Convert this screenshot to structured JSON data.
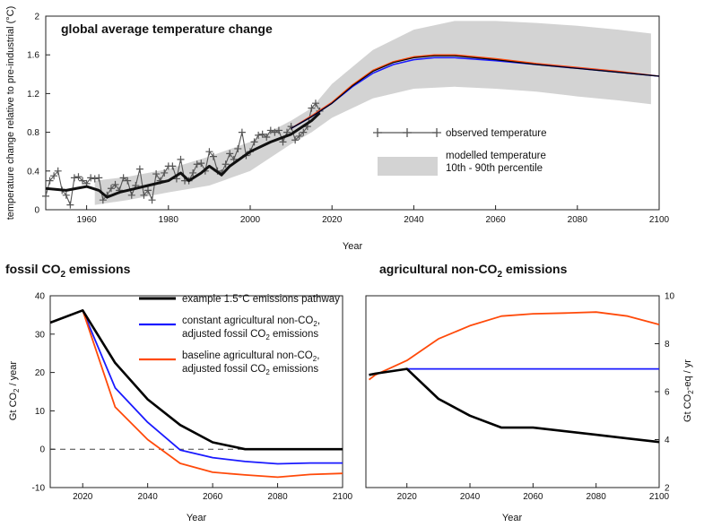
{
  "chart_data": [
    {
      "type": "line",
      "title": "global average temperature change",
      "xlabel": "Year",
      "ylabel": "temperature change relative to pre-industrial (°C)",
      "xlim": [
        1950,
        2100
      ],
      "ylim": [
        0,
        2
      ],
      "xticks": [
        "1960",
        "1980",
        "2000",
        "2020",
        "2040",
        "2060",
        "2080",
        "2100"
      ],
      "yticks": [
        "0",
        "0.4",
        "0.8",
        "1.2",
        "1.6",
        "2"
      ],
      "legend": [
        {
          "label": "observed temperature"
        },
        {
          "label": "modelled temperature",
          "label2": "10th - 90th percentile"
        }
      ],
      "observed": {
        "x": [
          1950,
          1951,
          1952,
          1953,
          1954,
          1955,
          1956,
          1957,
          1958,
          1959,
          1960,
          1961,
          1962,
          1963,
          1964,
          1965,
          1966,
          1967,
          1968,
          1969,
          1970,
          1971,
          1972,
          1973,
          1974,
          1975,
          1976,
          1977,
          1978,
          1979,
          1980,
          1981,
          1982,
          1983,
          1984,
          1985,
          1986,
          1987,
          1988,
          1989,
          1990,
          1991,
          1992,
          1993,
          1994,
          1995,
          1996,
          1997,
          1998,
          1999,
          2000,
          2001,
          2002,
          2003,
          2004,
          2005,
          2006,
          2007,
          2008,
          2009,
          2010,
          2011,
          2012,
          2013,
          2014,
          2015,
          2016,
          2017
        ],
        "y": [
          0.14,
          0.3,
          0.35,
          0.4,
          0.2,
          0.15,
          0.05,
          0.33,
          0.34,
          0.3,
          0.27,
          0.33,
          0.32,
          0.33,
          0.1,
          0.15,
          0.22,
          0.26,
          0.2,
          0.33,
          0.3,
          0.15,
          0.25,
          0.42,
          0.15,
          0.2,
          0.1,
          0.37,
          0.3,
          0.38,
          0.45,
          0.45,
          0.32,
          0.52,
          0.3,
          0.3,
          0.38,
          0.47,
          0.48,
          0.4,
          0.6,
          0.55,
          0.4,
          0.38,
          0.47,
          0.58,
          0.52,
          0.63,
          0.8,
          0.56,
          0.6,
          0.7,
          0.77,
          0.78,
          0.75,
          0.82,
          0.8,
          0.82,
          0.7,
          0.8,
          0.86,
          0.72,
          0.76,
          0.8,
          0.86,
          1.05,
          1.1,
          1.02
        ]
      },
      "observed_smooth": {
        "x": [
          1950,
          1955,
          1960,
          1963,
          1965,
          1968,
          1970,
          1975,
          1980,
          1983,
          1985,
          1988,
          1990,
          1993,
          1995,
          2000,
          2005,
          2010,
          2015,
          2017
        ],
        "y": [
          0.22,
          0.2,
          0.24,
          0.2,
          0.13,
          0.18,
          0.2,
          0.25,
          0.3,
          0.38,
          0.3,
          0.38,
          0.45,
          0.36,
          0.45,
          0.6,
          0.7,
          0.78,
          0.92,
          1.0
        ]
      },
      "model": {
        "x": [
          2010,
          2015,
          2020,
          2025,
          2030,
          2035,
          2040,
          2045,
          2050,
          2060,
          2070,
          2080,
          2090,
          2100
        ],
        "y": [
          0.84,
          0.96,
          1.1,
          1.28,
          1.43,
          1.52,
          1.57,
          1.59,
          1.59,
          1.55,
          1.5,
          1.46,
          1.42,
          1.38
        ]
      },
      "model_blue": {
        "x": [
          2010,
          2015,
          2020,
          2025,
          2030,
          2035,
          2040,
          2045,
          2050,
          2060,
          2070,
          2080,
          2090,
          2100
        ],
        "y": [
          0.84,
          0.96,
          1.1,
          1.27,
          1.41,
          1.5,
          1.55,
          1.57,
          1.57,
          1.54,
          1.5,
          1.46,
          1.42,
          1.38
        ]
      },
      "model_red": {
        "x": [
          2010,
          2015,
          2020,
          2025,
          2030,
          2035,
          2040,
          2045,
          2050,
          2060,
          2070,
          2080,
          2090,
          2100
        ],
        "y": [
          0.84,
          0.97,
          1.11,
          1.29,
          1.44,
          1.53,
          1.58,
          1.6,
          1.6,
          1.56,
          1.51,
          1.47,
          1.43,
          1.38
        ]
      },
      "band": {
        "x": [
          1962,
          1970,
          1980,
          1990,
          2000,
          2010,
          2015,
          2020,
          2030,
          2040,
          2050,
          2060,
          2070,
          2080,
          2090,
          2098
        ],
        "upper": [
          0.3,
          0.34,
          0.42,
          0.55,
          0.7,
          0.92,
          1.05,
          1.3,
          1.65,
          1.86,
          1.95,
          1.95,
          1.93,
          1.9,
          1.86,
          1.82
        ],
        "lower": [
          0.05,
          0.1,
          0.18,
          0.25,
          0.4,
          0.68,
          0.8,
          0.95,
          1.15,
          1.25,
          1.27,
          1.25,
          1.22,
          1.17,
          1.13,
          1.09
        ]
      }
    },
    {
      "type": "line",
      "title": "fossil CO2 emissions",
      "xlabel": "Year",
      "ylabel": "Gt CO2 / year",
      "xlim": [
        2010,
        2100
      ],
      "ylim": [
        -10,
        40
      ],
      "xticks": [
        "2020",
        "2040",
        "2060",
        "2080",
        "2100"
      ],
      "yticks": [
        "-10",
        "0",
        "10",
        "20",
        "30",
        "40"
      ],
      "zero_line": true,
      "x": [
        2010,
        2020,
        2030,
        2040,
        2050,
        2060,
        2070,
        2080,
        2090,
        2100
      ],
      "series": [
        {
          "name": "example 1.5°C emissions pathway",
          "color": "#000000",
          "values": [
            33,
            36.2,
            22.5,
            13,
            6.3,
            1.8,
            0,
            0,
            0,
            0
          ]
        },
        {
          "name": "constant agricultural non-CO2, adjusted fossil CO2 emissions",
          "color": "#1a1aff",
          "values": [
            33,
            36.2,
            16,
            7,
            -0.2,
            -2.2,
            -3.2,
            -3.8,
            -3.6,
            -3.6
          ]
        },
        {
          "name": "baseline agricultural non-CO2, adjusted fossil CO2 emissions",
          "color": "#ff4a0a",
          "values": [
            33,
            36.2,
            11,
            2.5,
            -3.7,
            -6,
            -6.7,
            -7.3,
            -6.6,
            -6.3
          ]
        }
      ]
    },
    {
      "type": "line",
      "title": "agricultural non-CO2 emissions",
      "xlabel": "Year",
      "ylabel": "Gt CO2-eq / yr",
      "xlim": [
        2010,
        2100
      ],
      "ylim": [
        2,
        10
      ],
      "xticks": [
        "2020",
        "2040",
        "2060",
        "2080",
        "2100"
      ],
      "yticks": [
        "2",
        "4",
        "6",
        "8",
        "10"
      ],
      "x": [
        2008,
        2010,
        2020,
        2030,
        2040,
        2050,
        2060,
        2070,
        2080,
        2090,
        2100
      ],
      "series": [
        {
          "name": "example 1.5°C emissions pathway",
          "color": "#000000",
          "values": [
            6.7,
            6.75,
            6.95,
            5.7,
            5.0,
            4.5,
            4.5,
            4.35,
            4.2,
            4.05,
            3.9
          ]
        },
        {
          "name": "constant agricultural non-CO2",
          "color": "#1a1aff",
          "values": [
            6.7,
            6.75,
            6.95,
            6.95,
            6.95,
            6.95,
            6.95,
            6.95,
            6.95,
            6.95,
            6.95
          ]
        },
        {
          "name": "baseline agricultural non-CO2",
          "color": "#ff4a0a",
          "values": [
            6.5,
            6.7,
            7.3,
            8.2,
            8.75,
            9.15,
            9.25,
            9.28,
            9.32,
            9.15,
            8.8
          ]
        }
      ]
    }
  ],
  "legend2": {
    "line1": "example 1.5°C emissions pathway",
    "line2a": "constant agricultural non-CO",
    "line2b": "adjusted fossil CO",
    "line2c": " emissions",
    "line3a": "baseline agricultural non-CO",
    "line3b": "adjusted fossil CO",
    "line3c": " emissions",
    "sub2": "2",
    "comma": ","
  },
  "titles": {
    "p2a": "fossil CO",
    "p2sub": "2",
    "p2b": " emissions",
    "p3a": "agricultural non-CO",
    "p3sub": "2",
    "p3b": " emissions"
  },
  "ylabels": {
    "p2a": "Gt CO",
    "p2sub": "2",
    "p2b": " / year",
    "p3a": "Gt CO",
    "p3sub": "2",
    "p3b": "-eq / yr"
  },
  "colors": {
    "black": "#000000",
    "blue": "#1a1aff",
    "red": "#ff4a0a",
    "band": "#d3d3d3",
    "observed": "#555555"
  }
}
